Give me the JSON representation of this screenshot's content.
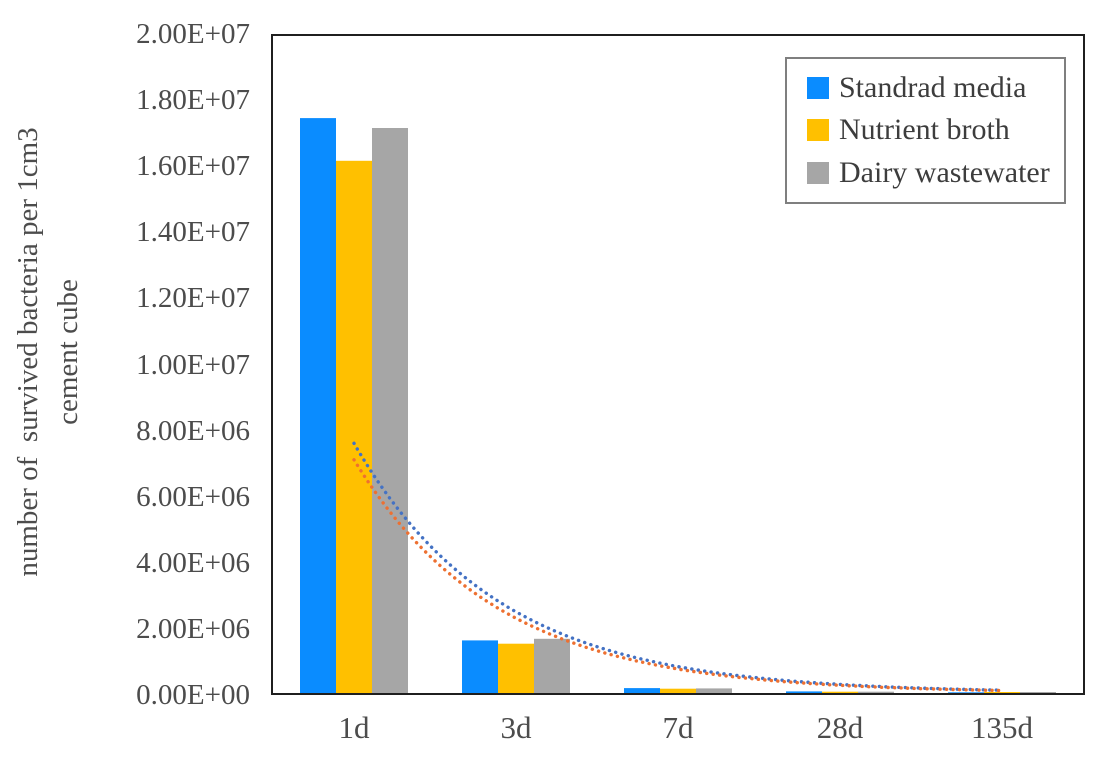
{
  "chart_data": {
    "type": "bar",
    "categories": [
      "1d",
      "3d",
      "7d",
      "28d",
      "135d"
    ],
    "series": [
      {
        "name": "Standrad media",
        "color": "#0a8cff",
        "values": [
          17500000.0,
          1600000.0,
          150000.0,
          50000.0,
          20000.0
        ]
      },
      {
        "name": "Nutrient broth",
        "color": "#ffc000",
        "values": [
          16200000.0,
          1500000.0,
          130000.0,
          40000.0,
          30000.0
        ]
      },
      {
        "name": "Dairy wastewater",
        "color": "#a6a6a6",
        "values": [
          17200000.0,
          1650000.0,
          140000.0,
          40000.0,
          30000.0
        ]
      }
    ],
    "trendlines": [
      {
        "name": "exponential-trend-blue",
        "color": "#4472c4",
        "start_value": 7600000.0,
        "end_value": 85000.0
      },
      {
        "name": "exponential-trend-orange",
        "color": "#ed7031",
        "start_value": 7100000.0,
        "end_value": 75000.0
      }
    ],
    "y_ticks": [
      "2.00E+07",
      "1.80E+07",
      "1.60E+07",
      "1.40E+07",
      "1.20E+07",
      "1.00E+07",
      "8.00E+06",
      "6.00E+06",
      "4.00E+06",
      "2.00E+06",
      "0.00E+00"
    ],
    "ymax": 20000000.0,
    "ylim": [
      0,
      20000000.0
    ],
    "ylabel_line1": "number of  survived bacteria per 1cm3",
    "ylabel_line2": "cement cube",
    "xlabel": "",
    "title": "",
    "grid": "off",
    "legend_position": "top-right"
  }
}
